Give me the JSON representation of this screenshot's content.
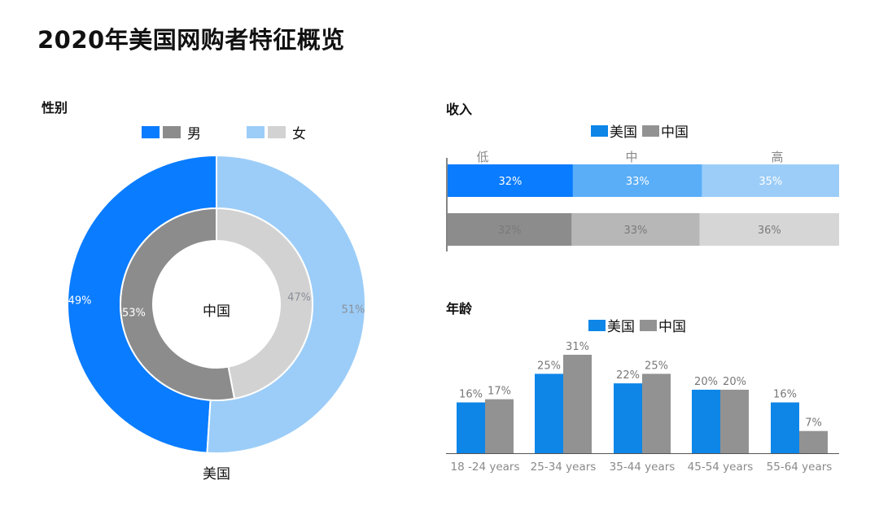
{
  "title": "2020年美国网购者特征概览",
  "gender": {
    "title": "性别",
    "legend": {
      "male": "男",
      "female": "女"
    },
    "outer_label": "美国",
    "inner_label": "中国"
  },
  "income": {
    "title": "收入",
    "legend": [
      "美国",
      "中国"
    ],
    "levels": [
      "低",
      "中",
      "高"
    ]
  },
  "age": {
    "title": "年龄",
    "legend": [
      "美国",
      "中国"
    ]
  },
  "colors": {
    "us_male": "#0a7cff",
    "us_female": "#9ccdf8",
    "cn_male": "#8c8c8c",
    "cn_female": "#d2d2d2",
    "us_income": [
      "#0a7cff",
      "#5aaef8",
      "#9ccdf8"
    ],
    "cn_income": [
      "#8c8c8c",
      "#b7b7b7",
      "#d6d6d6"
    ],
    "us_bar": "#0d86e8",
    "cn_bar": "#929292"
  },
  "chart_data": [
    {
      "type": "pie",
      "title": "性别",
      "series": [
        {
          "name": "美国",
          "labels": [
            "男",
            "女"
          ],
          "values": [
            49,
            51
          ],
          "value_labels": [
            "49%",
            "51%"
          ]
        },
        {
          "name": "中国",
          "labels": [
            "男",
            "女"
          ],
          "values": [
            53,
            47
          ],
          "value_labels": [
            "53%",
            "47%"
          ]
        }
      ]
    },
    {
      "type": "bar",
      "title": "收入",
      "orientation": "horizontal-stacked",
      "categories": [
        "低",
        "中",
        "高"
      ],
      "series": [
        {
          "name": "美国",
          "values": [
            32,
            33,
            35
          ],
          "value_labels": [
            "32%",
            "33%",
            "35%"
          ]
        },
        {
          "name": "中国",
          "values": [
            32,
            33,
            36
          ],
          "value_labels": [
            "32%",
            "33%",
            "36%"
          ]
        }
      ]
    },
    {
      "type": "bar",
      "title": "年龄",
      "categories": [
        "18 -24 years",
        "25-34 years",
        "35-44 years",
        "45-54 years",
        "55-64 years"
      ],
      "series": [
        {
          "name": "美国",
          "values": [
            16,
            25,
            22,
            20,
            16
          ],
          "value_labels": [
            "16%",
            "25%",
            "22%",
            "20%",
            "16%"
          ]
        },
        {
          "name": "中国",
          "values": [
            17,
            31,
            25,
            20,
            7
          ],
          "value_labels": [
            "17%",
            "31%",
            "25%",
            "20%",
            "7%"
          ]
        }
      ]
    }
  ]
}
